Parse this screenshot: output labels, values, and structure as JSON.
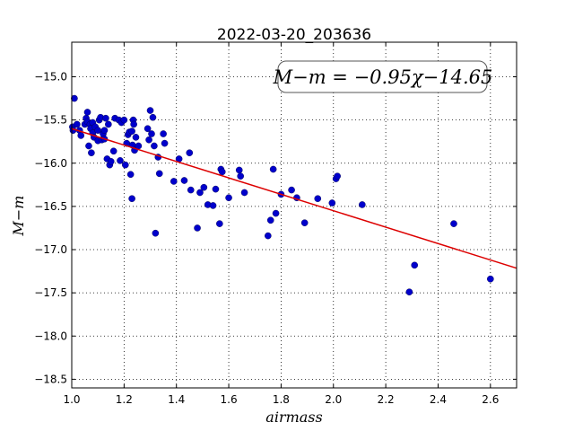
{
  "chart_data": {
    "type": "scatter",
    "title": "2022-03-20_203636",
    "xlabel": "airmass",
    "ylabel": "M−m",
    "xlim": [
      1.0,
      2.7
    ],
    "ylim": [
      -18.6,
      -14.6
    ],
    "y_inverted": true,
    "grid": true,
    "x_ticks": [
      1.0,
      1.2,
      1.4,
      1.6,
      1.8,
      2.0,
      2.2,
      2.4,
      2.6
    ],
    "x_tick_labels": [
      "1.0",
      "1.2",
      "1.4",
      "1.6",
      "1.8",
      "2.0",
      "2.2",
      "2.4",
      "2.6"
    ],
    "y_ticks": [
      -15.0,
      -15.5,
      -16.0,
      -16.5,
      -17.0,
      -17.5,
      -18.0,
      -18.5
    ],
    "y_tick_labels": [
      "−15.0",
      "−15.5",
      "−16.0",
      "−16.5",
      "−17.0",
      "−17.5",
      "−18.0",
      "−18.5"
    ],
    "annotation": "M−m = −0.95χ−14.65",
    "fit": {
      "slope": -0.95,
      "intercept": -14.65,
      "x_range": [
        1.0,
        2.7
      ],
      "color": "#dd0000"
    },
    "point_color": "#0000cc",
    "points": [
      [
        1.003,
        -15.58
      ],
      [
        1.005,
        -15.62
      ],
      [
        1.01,
        -15.25
      ],
      [
        1.02,
        -15.55
      ],
      [
        1.03,
        -15.62
      ],
      [
        1.035,
        -15.68
      ],
      [
        1.05,
        -15.55
      ],
      [
        1.055,
        -15.48
      ],
      [
        1.06,
        -15.41
      ],
      [
        1.06,
        -15.52
      ],
      [
        1.065,
        -15.8
      ],
      [
        1.07,
        -15.55
      ],
      [
        1.072,
        -15.6
      ],
      [
        1.075,
        -15.88
      ],
      [
        1.08,
        -15.53
      ],
      [
        1.08,
        -15.65
      ],
      [
        1.085,
        -15.7
      ],
      [
        1.09,
        -15.58
      ],
      [
        1.1,
        -15.62
      ],
      [
        1.1,
        -15.74
      ],
      [
        1.105,
        -15.5
      ],
      [
        1.11,
        -15.47
      ],
      [
        1.115,
        -15.73
      ],
      [
        1.12,
        -15.66
      ],
      [
        1.125,
        -15.72
      ],
      [
        1.125,
        -15.62
      ],
      [
        1.13,
        -15.48
      ],
      [
        1.135,
        -15.95
      ],
      [
        1.14,
        -15.55
      ],
      [
        1.145,
        -16.02
      ],
      [
        1.15,
        -15.98
      ],
      [
        1.16,
        -15.86
      ],
      [
        1.165,
        -15.48
      ],
      [
        1.18,
        -15.5
      ],
      [
        1.185,
        -15.97
      ],
      [
        1.19,
        -15.53
      ],
      [
        1.2,
        -15.5
      ],
      [
        1.205,
        -16.02
      ],
      [
        1.21,
        -15.77
      ],
      [
        1.215,
        -15.67
      ],
      [
        1.22,
        -15.64
      ],
      [
        1.225,
        -16.13
      ],
      [
        1.23,
        -15.63
      ],
      [
        1.232,
        -15.79
      ],
      [
        1.235,
        -15.5
      ],
      [
        1.237,
        -15.55
      ],
      [
        1.24,
        -15.85
      ],
      [
        1.245,
        -15.7
      ],
      [
        1.23,
        -16.41
      ],
      [
        1.255,
        -15.8
      ],
      [
        1.29,
        -15.6
      ],
      [
        1.295,
        -15.73
      ],
      [
        1.3,
        -15.39
      ],
      [
        1.305,
        -15.66
      ],
      [
        1.31,
        -15.47
      ],
      [
        1.315,
        -15.8
      ],
      [
        1.32,
        -16.81
      ],
      [
        1.33,
        -15.93
      ],
      [
        1.335,
        -16.12
      ],
      [
        1.35,
        -15.66
      ],
      [
        1.355,
        -15.77
      ],
      [
        1.39,
        -16.21
      ],
      [
        1.41,
        -15.95
      ],
      [
        1.43,
        -16.2
      ],
      [
        1.45,
        -15.88
      ],
      [
        1.455,
        -16.31
      ],
      [
        1.48,
        -16.75
      ],
      [
        1.49,
        -16.34
      ],
      [
        1.505,
        -16.28
      ],
      [
        1.52,
        -16.48
      ],
      [
        1.54,
        -16.49
      ],
      [
        1.55,
        -16.3
      ],
      [
        1.565,
        -16.7
      ],
      [
        1.57,
        -16.07
      ],
      [
        1.575,
        -16.1
      ],
      [
        1.6,
        -16.4
      ],
      [
        1.64,
        -16.08
      ],
      [
        1.645,
        -16.15
      ],
      [
        1.66,
        -16.34
      ],
      [
        1.75,
        -16.84
      ],
      [
        1.76,
        -16.66
      ],
      [
        1.77,
        -16.07
      ],
      [
        1.78,
        -16.58
      ],
      [
        1.8,
        -16.36
      ],
      [
        1.84,
        -16.31
      ],
      [
        1.86,
        -16.4
      ],
      [
        1.89,
        -16.69
      ],
      [
        1.94,
        -16.41
      ],
      [
        1.995,
        -16.46
      ],
      [
        2.01,
        -16.18
      ],
      [
        2.015,
        -16.15
      ],
      [
        2.11,
        -16.48
      ],
      [
        2.29,
        -17.49
      ],
      [
        2.31,
        -17.18
      ],
      [
        2.46,
        -16.7
      ],
      [
        2.6,
        -17.34
      ]
    ]
  }
}
